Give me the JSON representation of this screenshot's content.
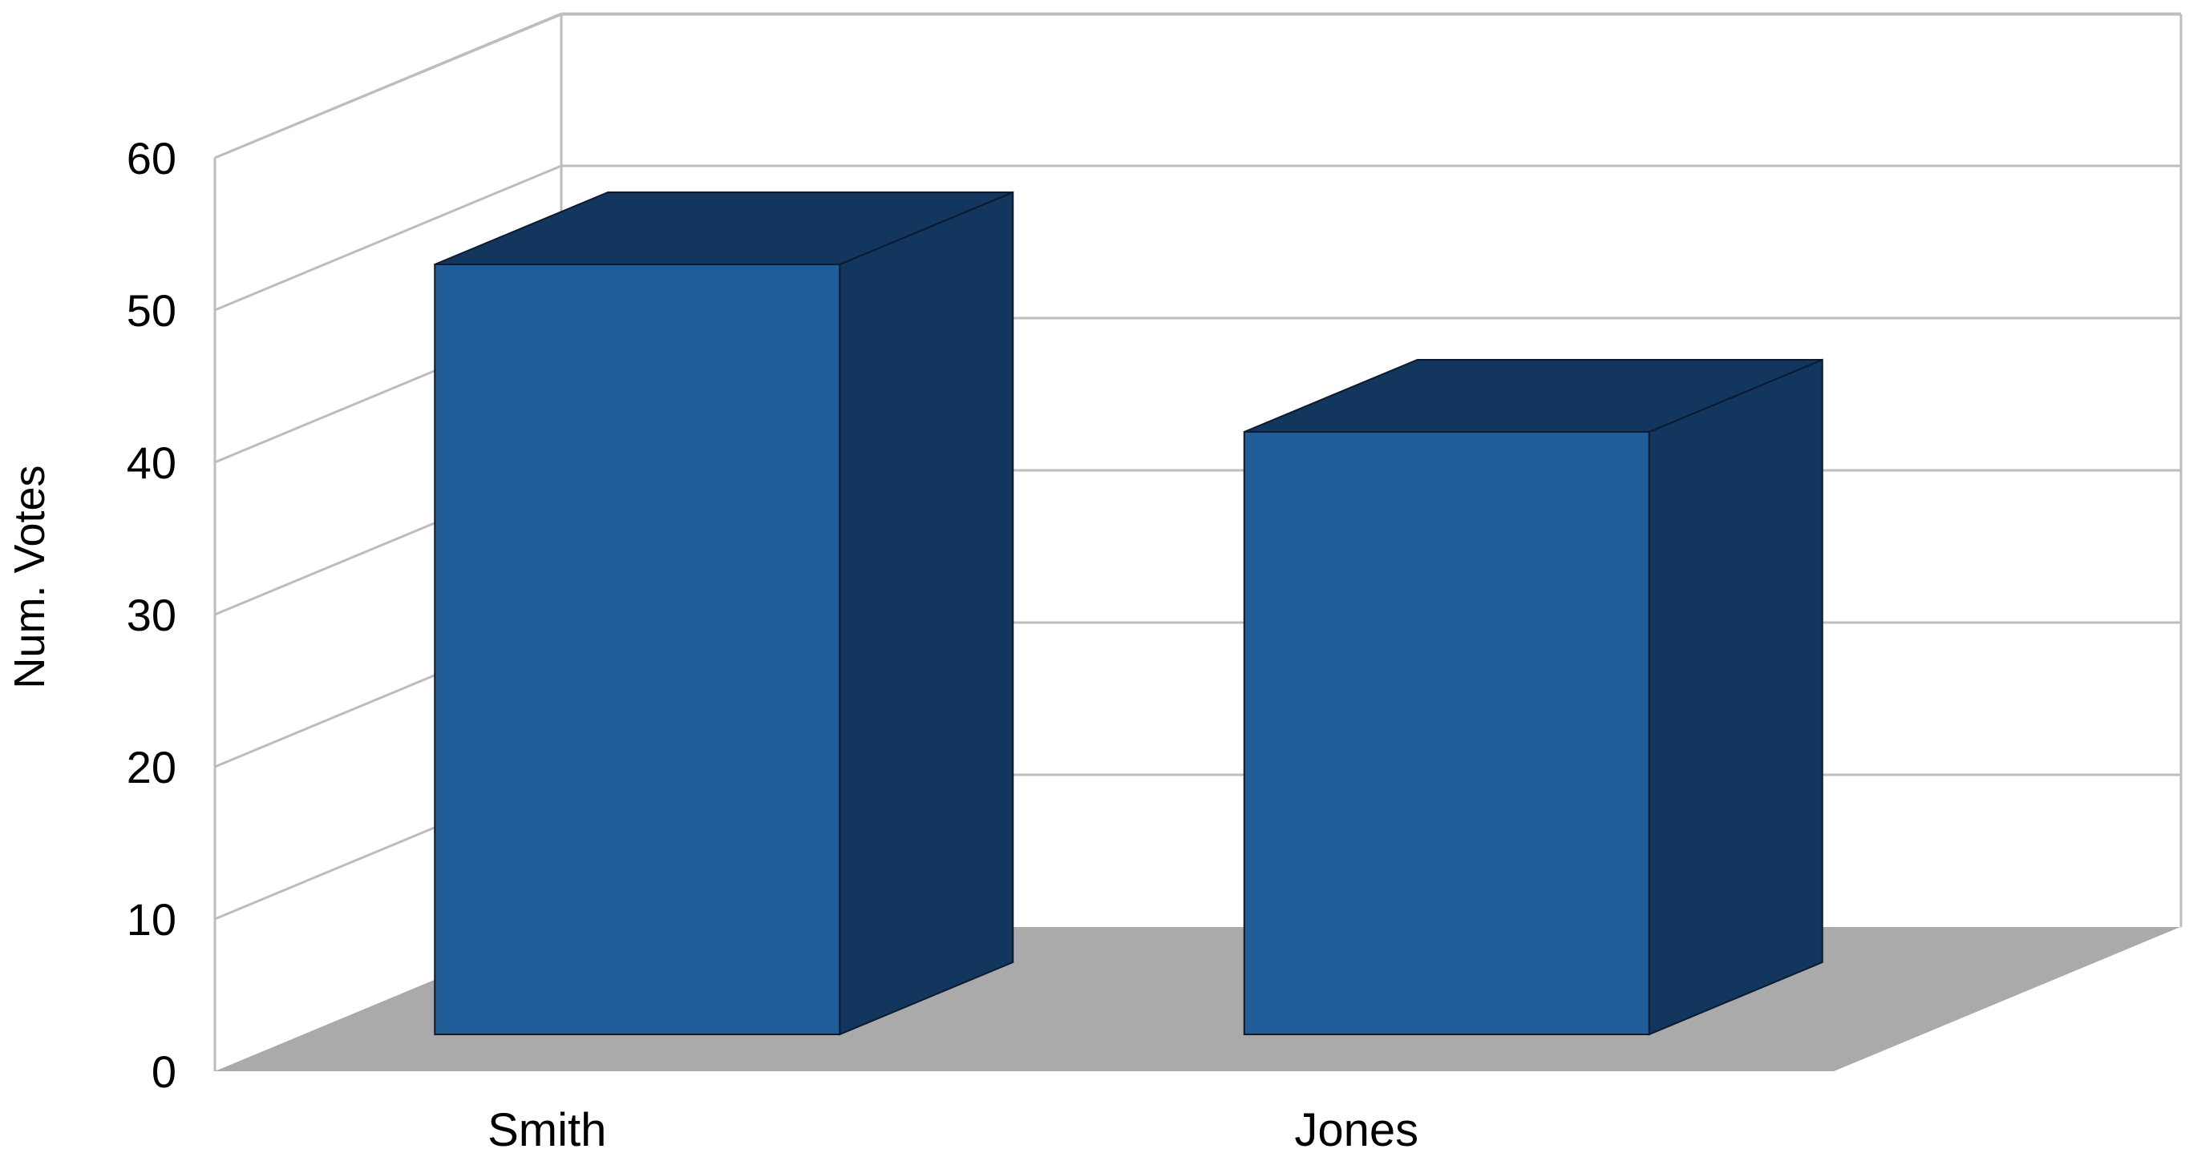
{
  "chart_data": {
    "type": "bar",
    "style": "3d",
    "categories": [
      "Smith",
      "Jones"
    ],
    "series": [
      {
        "values": [
          53,
          42
        ]
      }
    ],
    "title": "",
    "xlabel": "",
    "ylabel": "Num. Votes",
    "ylim": [
      0,
      60
    ],
    "yticks": [
      0,
      10,
      20,
      30,
      40,
      50,
      60
    ],
    "grid": true,
    "legend": "none",
    "colors": {
      "bar_front": "#215D99",
      "bar_side": "#13365F",
      "bar_top": "#13365F",
      "floor": "#AAAAAA",
      "gridline": "#BDBDBD",
      "bar_outline": "#0B1A2E"
    }
  }
}
